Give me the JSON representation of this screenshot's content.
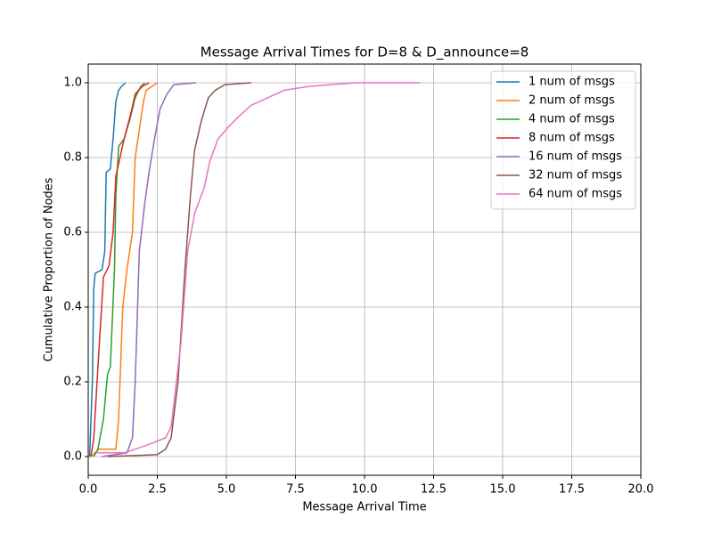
{
  "chart_data": {
    "type": "line",
    "title": "Message Arrival Times for D=8 & D_announce=8",
    "x_label": "Message Arrival Time",
    "y_label": "Cumulative Proportion of Nodes",
    "xlim": [
      0,
      20
    ],
    "ylim": [
      -0.05,
      1.05
    ],
    "xticks": [
      {
        "value": 0,
        "label": "0.0"
      },
      2.5,
      {
        "value": 5,
        "label": "5.0"
      },
      7.5,
      {
        "value": 10,
        "label": "10.0"
      },
      12.5,
      {
        "value": 15,
        "label": "15.0"
      },
      17.5,
      {
        "value": 20,
        "label": "20.0"
      }
    ],
    "yticks": [
      {
        "value": 0,
        "label": "0.0"
      },
      0.2,
      0.4,
      0.6,
      0.8,
      {
        "value": 1,
        "label": "1.0"
      }
    ],
    "grid": true,
    "legend": "upper right",
    "series": [
      {
        "name": "1 num of msgs",
        "color": "#1f77b4",
        "x": [
          0.05,
          0.15,
          0.2,
          0.25,
          0.5,
          0.6,
          0.65,
          0.8,
          0.9,
          1.0,
          1.1,
          1.2,
          1.35
        ],
        "values": [
          0,
          0.2,
          0.45,
          0.49,
          0.5,
          0.55,
          0.76,
          0.77,
          0.85,
          0.95,
          0.98,
          0.99,
          1.0
        ]
      },
      {
        "name": "2 num of msgs",
        "color": "#ff7f0e",
        "x": [
          0.1,
          0.4,
          1.0,
          1.1,
          1.25,
          1.4,
          1.6,
          1.7,
          1.8,
          2.0,
          2.1,
          2.3,
          2.5
        ],
        "values": [
          0,
          0.02,
          0.02,
          0.1,
          0.4,
          0.5,
          0.6,
          0.8,
          0.85,
          0.95,
          0.98,
          0.99,
          1.0
        ]
      },
      {
        "name": "4 num of msgs",
        "color": "#2ca02c",
        "x": [
          0.2,
          0.35,
          0.55,
          0.7,
          0.8,
          0.95,
          1.0,
          1.1,
          1.3,
          1.5,
          1.7,
          1.9,
          2.05
        ],
        "values": [
          0,
          0.02,
          0.1,
          0.22,
          0.24,
          0.5,
          0.7,
          0.83,
          0.85,
          0.9,
          0.96,
          0.99,
          1.0
        ]
      },
      {
        "name": "8 num of msgs",
        "color": "#d62728",
        "x": [
          0.1,
          0.2,
          0.4,
          0.55,
          0.75,
          0.9,
          1.0,
          1.3,
          1.55,
          1.7,
          1.95,
          2.2
        ],
        "values": [
          0,
          0.05,
          0.3,
          0.48,
          0.51,
          0.6,
          0.75,
          0.85,
          0.92,
          0.97,
          0.99,
          1.0
        ]
      },
      {
        "name": "16 num of msgs",
        "color": "#9467bd",
        "x": [
          0.5,
          1.4,
          1.6,
          1.7,
          1.85,
          2.05,
          2.2,
          2.4,
          2.6,
          2.85,
          3.1,
          3.9
        ],
        "values": [
          0,
          0.01,
          0.05,
          0.2,
          0.55,
          0.68,
          0.76,
          0.85,
          0.93,
          0.97,
          0.995,
          1.0
        ]
      },
      {
        "name": "32 num of msgs",
        "color": "#8c564b",
        "x": [
          0.7,
          2.5,
          2.8,
          3.0,
          3.25,
          3.5,
          3.7,
          3.85,
          4.1,
          4.35,
          4.6,
          4.95,
          5.9
        ],
        "values": [
          0,
          0.005,
          0.02,
          0.05,
          0.2,
          0.5,
          0.7,
          0.82,
          0.9,
          0.96,
          0.98,
          0.995,
          1.0
        ]
      },
      {
        "name": "64 num of msgs",
        "color": "#e377c2",
        "x": [
          0.3,
          1.3,
          2.1,
          2.8,
          3.0,
          3.35,
          3.6,
          3.85,
          4.2,
          4.4,
          4.7,
          5.05,
          5.45,
          5.9,
          6.5,
          7.1,
          7.95,
          8.75,
          9.7,
          12.0
        ],
        "values": [
          0.01,
          0.01,
          0.03,
          0.05,
          0.08,
          0.3,
          0.55,
          0.65,
          0.72,
          0.79,
          0.85,
          0.88,
          0.91,
          0.94,
          0.96,
          0.98,
          0.99,
          0.995,
          1.0,
          1.0
        ]
      }
    ]
  }
}
